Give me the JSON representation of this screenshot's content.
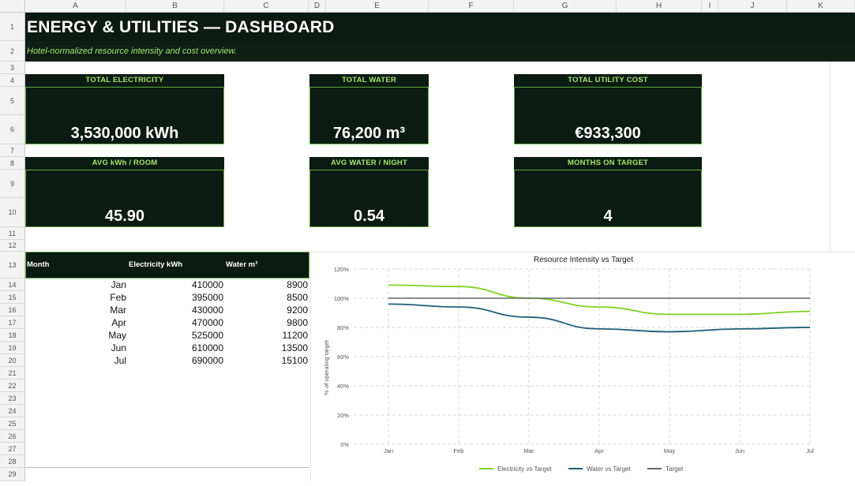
{
  "sheet": {
    "columns": [
      "A",
      "B",
      "C",
      "D",
      "E",
      "F",
      "G",
      "H",
      "I",
      "J",
      "K"
    ],
    "rows": [
      "1",
      "2",
      "3",
      "4",
      "5",
      "6",
      "7",
      "8",
      "9",
      "10",
      "11",
      "12",
      "13",
      "14",
      "15",
      "16",
      "17",
      "18",
      "19",
      "20",
      "21",
      "22",
      "23",
      "24",
      "25",
      "26",
      "27",
      "28",
      "29"
    ]
  },
  "header": {
    "title": "ENERGY & UTILITIES — DASHBOARD",
    "subtitle": "Hotel-normalized resource intensity and cost overview."
  },
  "kpis": [
    {
      "label": "TOTAL ELECTRICITY",
      "value": "3,530,000 kWh"
    },
    {
      "label": "TOTAL WATER",
      "value": "76,200 m³"
    },
    {
      "label": "TOTAL UTILITY COST",
      "value": "€933,300"
    },
    {
      "label": "AVG kWh / ROOM",
      "value": "45.90"
    },
    {
      "label": "AVG WATER / NIGHT",
      "value": "0.54"
    },
    {
      "label": "MONTHS ON TARGET",
      "value": "4"
    }
  ],
  "table": {
    "headers": [
      "Month",
      "Electricity kWh",
      "Water m³"
    ],
    "rows": [
      [
        "Jan",
        "410000",
        "8900"
      ],
      [
        "Feb",
        "395000",
        "8500"
      ],
      [
        "Mar",
        "430000",
        "9200"
      ],
      [
        "Apr",
        "470000",
        "9800"
      ],
      [
        "May",
        "525000",
        "11200"
      ],
      [
        "Jun",
        "610000",
        "13500"
      ],
      [
        "Jul",
        "690000",
        "15100"
      ]
    ]
  },
  "chart_data": {
    "type": "line",
    "title": "Resource Intensity vs Target",
    "ylabel": "% of operating target",
    "xlabel": "",
    "categories": [
      "Jan",
      "Feb",
      "Mar",
      "Apr",
      "May",
      "Jun",
      "Jul"
    ],
    "ylim": [
      0,
      120
    ],
    "yticks": [
      "0%",
      "20%",
      "40%",
      "60%",
      "80%",
      "100%",
      "120%"
    ],
    "grid": true,
    "legend_position": "bottom",
    "series": [
      {
        "name": "Electricity vs Target",
        "color": "#7ed321",
        "values": [
          109,
          108,
          100,
          94,
          89,
          89,
          91
        ]
      },
      {
        "name": "Water vs Target",
        "color": "#1f5f7a",
        "values": [
          96,
          94,
          87,
          79,
          77,
          79,
          80
        ]
      },
      {
        "name": "Target",
        "color": "#666666",
        "values": [
          100,
          100,
          100,
          100,
          100,
          100,
          100
        ]
      }
    ]
  }
}
